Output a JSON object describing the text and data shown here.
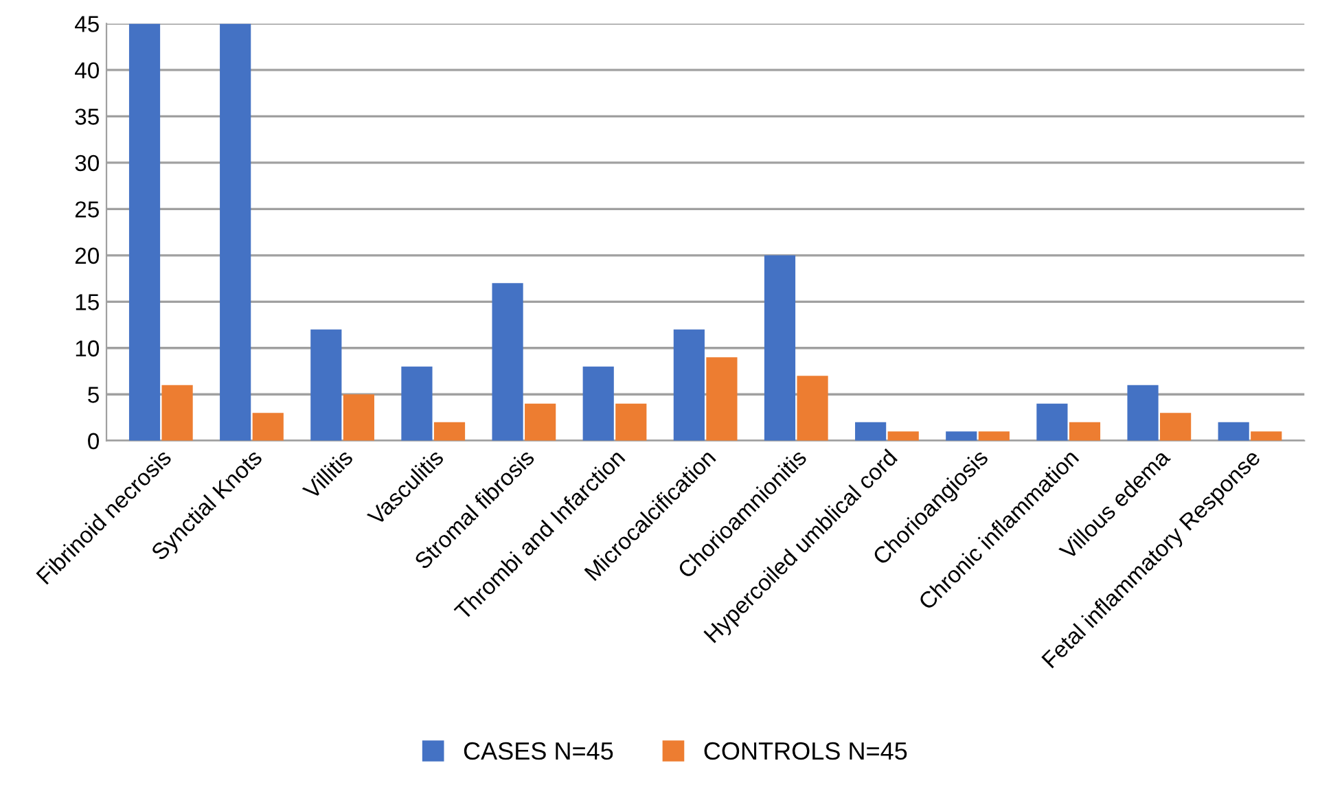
{
  "chart_data": {
    "type": "bar",
    "categories": [
      "Fibrinoid necrosis",
      "Synctial Knots",
      "Villitis",
      "Vasculitis",
      "Stromal fibrosis",
      "Thrombi and Infarction",
      "Microcalcification",
      "Chorioamnionitis",
      "Hypercoiled umblical cord",
      "Chorioangiosis",
      "Chronic inflammation",
      "Villous edema",
      "Fetal inflammatory Response"
    ],
    "series": [
      {
        "name": "CASES N=45",
        "color": "#4472c4",
        "values": [
          45,
          45,
          12,
          8,
          17,
          8,
          12,
          20,
          2,
          1,
          4,
          6,
          2
        ]
      },
      {
        "name": "CONTROLS N=45",
        "color": "#ed7d31",
        "values": [
          6,
          3,
          5,
          2,
          4,
          4,
          9,
          7,
          1,
          1,
          2,
          3,
          1
        ]
      }
    ],
    "ylim": [
      0,
      45
    ],
    "yticks": [
      0,
      5,
      10,
      15,
      20,
      25,
      30,
      35,
      40,
      45
    ],
    "grid": "y",
    "legend": "bottom"
  }
}
